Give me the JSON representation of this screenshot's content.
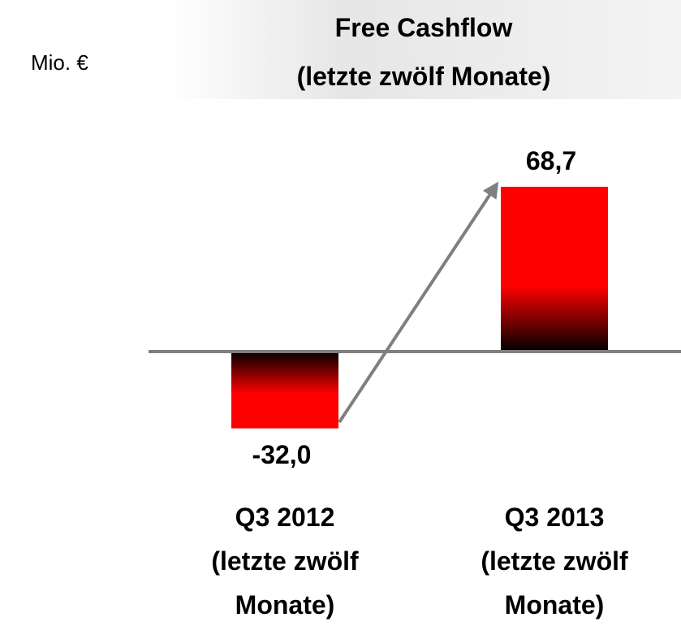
{
  "chart_data": {
    "type": "bar",
    "title": "Free Cashflow\n(letzte zwölf Monate)",
    "unit_label": "Mio. €",
    "categories": [
      "Q3 2012\n(letzte zwölf\nMonate)",
      "Q3 2013\n(letzte zwölf\nMonate)"
    ],
    "values": [
      -32.0,
      68.7
    ],
    "value_labels": [
      "-32,0",
      "68,7"
    ],
    "color": "#ff0000"
  }
}
